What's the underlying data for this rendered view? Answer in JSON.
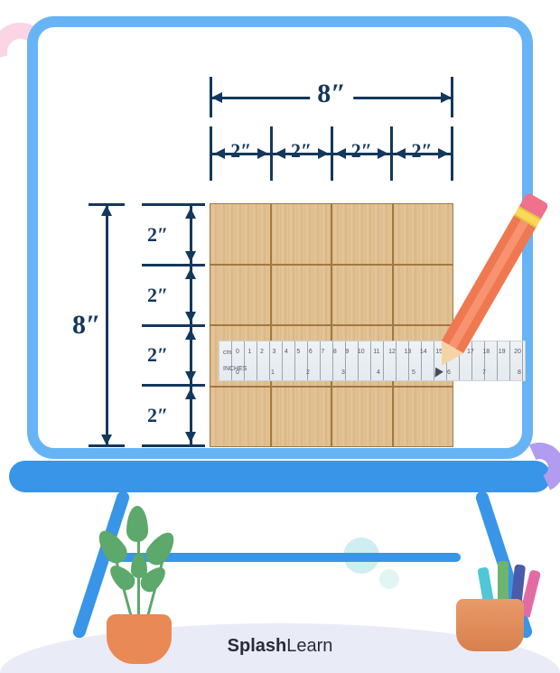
{
  "diagram": {
    "total_width_label": "8″",
    "total_height_label": "8″",
    "segment_label": "2″",
    "grid_rows": 4,
    "grid_cols": 4,
    "dimension_color": "#14385c",
    "wood_color": "#dcb887",
    "ruler": {
      "cm_label": "cm",
      "in_label": "INCHES",
      "cm_marks": [
        "0",
        "1",
        "2",
        "3",
        "4",
        "5",
        "6",
        "7",
        "8",
        "9",
        "10",
        "11",
        "12",
        "13",
        "14",
        "15",
        "16",
        "17",
        "18",
        "19",
        "20"
      ],
      "in_marks": [
        "0",
        "1",
        "2",
        "3",
        "4",
        "5",
        "6",
        "7",
        "8"
      ]
    }
  },
  "easel": {
    "frame_color": "#67b4f5",
    "tray_color": "#3895e8"
  },
  "decorations": {
    "swirl_pink": "#fbd5e5",
    "swirl_purple": "#b19cf0",
    "bubble_color": "#cfeef1"
  },
  "brand": {
    "text_bold": "Splash",
    "text_light": "Learn"
  }
}
